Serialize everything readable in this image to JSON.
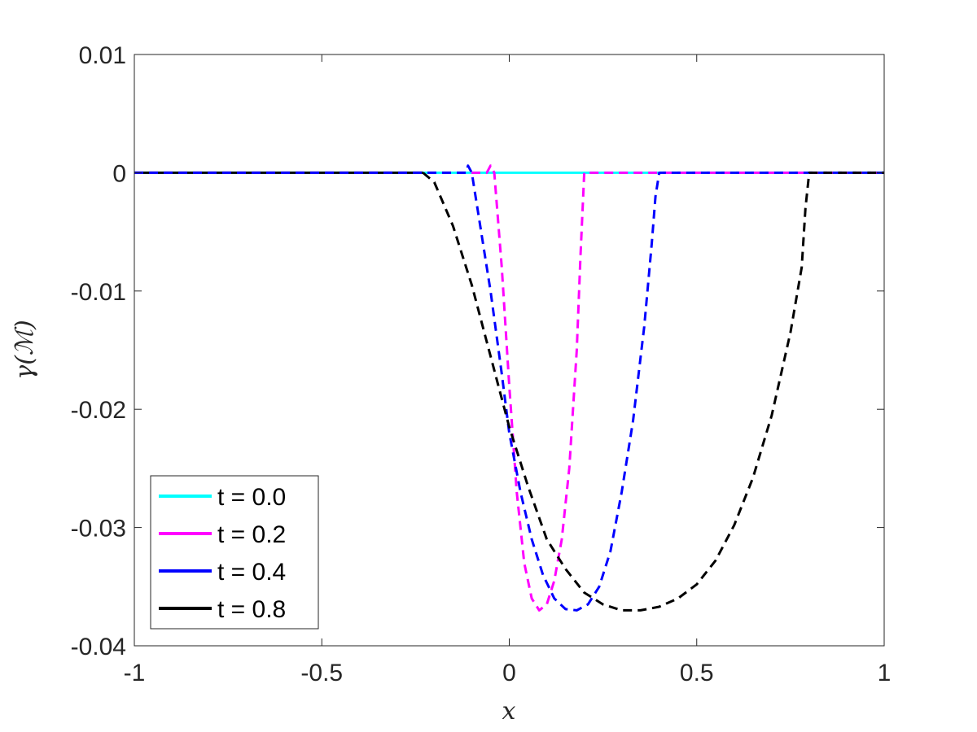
{
  "chart_data": {
    "type": "line",
    "title": "",
    "xlabel": "x",
    "ylabel": "γ(ℳ)",
    "xlim": [
      -1,
      1
    ],
    "ylim": [
      -0.04,
      0.01
    ],
    "xticks": [
      -1,
      -0.5,
      0,
      0.5,
      1
    ],
    "xtick_labels": [
      "-1",
      "-0.5",
      "0",
      "0.5",
      "1"
    ],
    "yticks": [
      0.01,
      0,
      -0.01,
      -0.02,
      -0.03,
      -0.04
    ],
    "ytick_labels": [
      "0.01",
      "0",
      "-0.01",
      "-0.02",
      "-0.03",
      "-0.04"
    ],
    "grid": false,
    "box": true,
    "legend_position": "bottom-left",
    "series": [
      {
        "name": "t = 0.0",
        "color": "#00ffff",
        "style": "solid",
        "x": [
          -1,
          -0.2,
          -0.15,
          -0.1,
          -0.05,
          0,
          0.05,
          0.1,
          0.2,
          0.4,
          0.6,
          0.8,
          1
        ],
        "y": [
          0,
          0,
          0,
          0,
          0,
          0,
          0,
          0,
          0,
          0,
          0,
          0,
          0
        ]
      },
      {
        "name": "t = 0.2",
        "color": "#ff00ff",
        "style": "dashed",
        "x": [
          -1,
          -0.1,
          -0.06,
          -0.05,
          -0.04,
          -0.02,
          0,
          0.02,
          0.04,
          0.06,
          0.08,
          0.1,
          0.12,
          0.14,
          0.16,
          0.18,
          0.19,
          0.2,
          0.25,
          0.5,
          1
        ],
        "y": [
          0,
          0,
          0,
          0.0006,
          0,
          -0.008,
          -0.018,
          -0.027,
          -0.033,
          -0.036,
          -0.037,
          -0.0365,
          -0.0345,
          -0.031,
          -0.025,
          -0.015,
          -0.007,
          0,
          0,
          0,
          0
        ]
      },
      {
        "name": "t = 0.4",
        "color": "#0000ff",
        "style": "dashed",
        "x": [
          -1,
          -0.15,
          -0.115,
          -0.11,
          -0.1,
          -0.08,
          -0.05,
          -0.02,
          0,
          0.03,
          0.06,
          0.09,
          0.12,
          0.15,
          0.18,
          0.21,
          0.24,
          0.27,
          0.3,
          0.33,
          0.36,
          0.38,
          0.39,
          0.4,
          0.5,
          1
        ],
        "y": [
          0,
          0,
          0,
          0.0006,
          0,
          -0.004,
          -0.01,
          -0.017,
          -0.022,
          -0.027,
          -0.031,
          -0.034,
          -0.036,
          -0.0369,
          -0.037,
          -0.0365,
          -0.035,
          -0.032,
          -0.027,
          -0.021,
          -0.013,
          -0.006,
          -0.002,
          0,
          0,
          1e-09
        ]
      },
      {
        "name": "t = 0.8",
        "color": "#000000",
        "style": "dashed",
        "x": [
          -0.23,
          -0.2,
          -0.15,
          -0.1,
          -0.05,
          0,
          0.05,
          0.1,
          0.15,
          0.2,
          0.25,
          0.3,
          0.35,
          0.4,
          0.45,
          0.5,
          0.55,
          0.6,
          0.65,
          0.7,
          0.75,
          0.78,
          0.79,
          0.8,
          0.9,
          1
        ],
        "y": [
          0,
          -0.0008,
          -0.0045,
          -0.0095,
          -0.0155,
          -0.0215,
          -0.0265,
          -0.031,
          -0.0335,
          -0.0355,
          -0.0365,
          -0.037,
          -0.037,
          -0.0367,
          -0.036,
          -0.0348,
          -0.0328,
          -0.0298,
          -0.0258,
          -0.0205,
          -0.0135,
          -0.008,
          -0.003,
          0,
          0,
          0
        ]
      },
      {
        "name": "",
        "color": "#000000",
        "style": "solid",
        "x": [
          -1,
          -0.5,
          -0.23
        ],
        "y": [
          0,
          0,
          0
        ]
      }
    ]
  }
}
